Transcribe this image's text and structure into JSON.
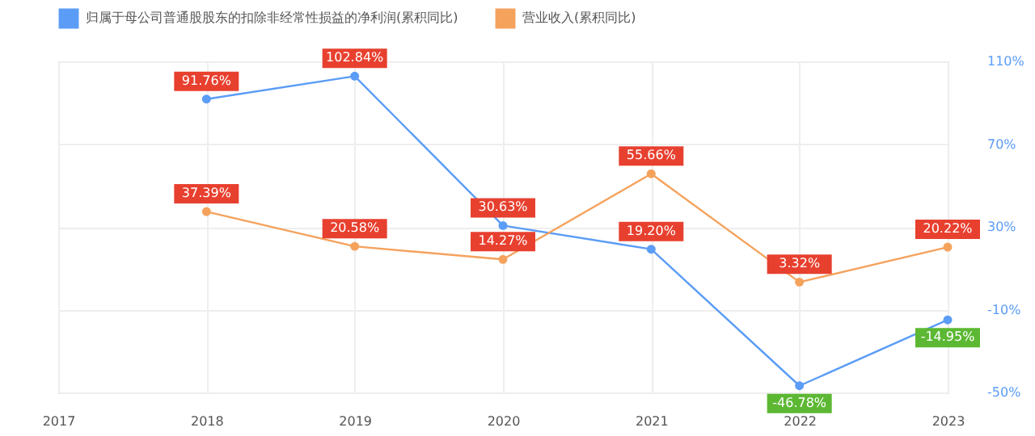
{
  "chart_data": {
    "type": "line",
    "categories": [
      "2017",
      "2018",
      "2019",
      "2020",
      "2021",
      "2022",
      "2023"
    ],
    "series": [
      {
        "name": "归属于母公司普通股股东的扣除非经常性损益的净利润(累积同比)",
        "color": "#5b9cf6",
        "values": [
          null,
          91.76,
          102.84,
          30.63,
          19.2,
          -46.78,
          -14.95
        ],
        "value_labels": [
          null,
          "91.76%",
          "102.84%",
          "30.63%",
          "19.20%",
          "-46.78%",
          "-14.95%"
        ]
      },
      {
        "name": "营业收入(累积同比)",
        "color": "#f5a25d",
        "values": [
          null,
          37.39,
          20.58,
          14.27,
          55.66,
          3.32,
          20.22
        ],
        "value_labels": [
          null,
          "37.39%",
          "20.58%",
          "14.27%",
          "55.66%",
          "3.32%",
          "20.22%"
        ]
      }
    ],
    "ylim": [
      -50,
      110
    ],
    "yticks": [
      {
        "value": -50,
        "label": "-50%"
      },
      {
        "value": -10,
        "label": "-10%"
      },
      {
        "value": 30,
        "label": "30%"
      },
      {
        "value": 70,
        "label": "70%"
      },
      {
        "value": 110,
        "label": "110%"
      }
    ],
    "grid": true,
    "legend": "top",
    "marker": "circle"
  }
}
